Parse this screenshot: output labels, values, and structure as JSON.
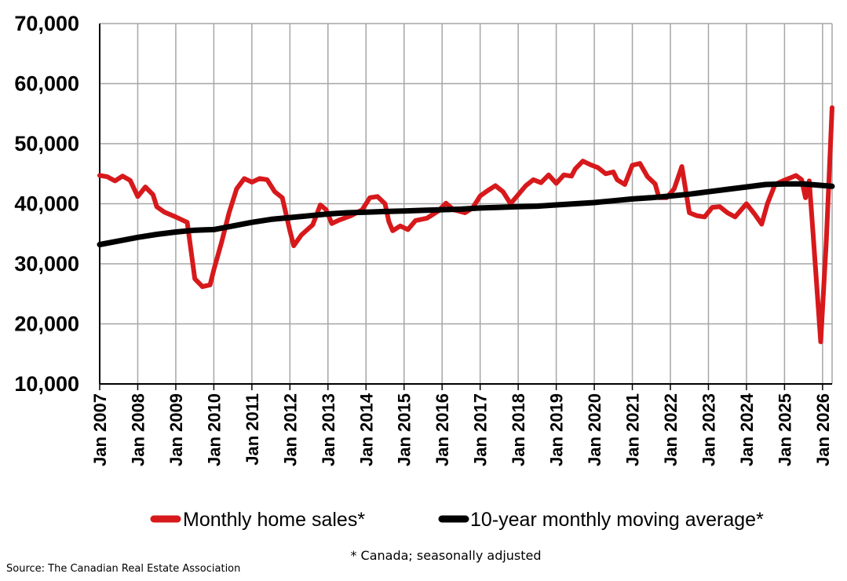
{
  "chart_data": {
    "type": "line",
    "title": "",
    "xlabel": "",
    "ylabel": "",
    "ylim": [
      10000,
      70000
    ],
    "yticks": [
      "10,000",
      "20,000",
      "30,000",
      "40,000",
      "50,000",
      "60,000",
      "70,000"
    ],
    "xticks": [
      "Jan 2007",
      "Jan 2008",
      "Jan 2009",
      "Jan 2010",
      "Jan 2011",
      "Jan 2012",
      "Jan 2013",
      "Jan 2014",
      "Jan 2015",
      "Jan 2016",
      "Jan 2017",
      "Jan 2018",
      "Jan 2019",
      "Jan 2020",
      "Jan 2021",
      "Jan 2022",
      "Jan 2023",
      "Jan 2024",
      "Jan 2025",
      "Jan 2026"
    ],
    "x_start_year": 2007,
    "x_end_year": 2026.25,
    "grid": true,
    "legend_position": "bottom",
    "series": [
      {
        "name": "Monthly home sales*",
        "color": "#d7191c",
        "points": [
          [
            2007.0,
            44700
          ],
          [
            2007.2,
            44500
          ],
          [
            2007.4,
            43800
          ],
          [
            2007.6,
            44600
          ],
          [
            2007.8,
            43900
          ],
          [
            2008.0,
            41200
          ],
          [
            2008.2,
            42800
          ],
          [
            2008.4,
            41500
          ],
          [
            2008.5,
            39500
          ],
          [
            2008.7,
            38600
          ],
          [
            2009.0,
            37800
          ],
          [
            2009.3,
            36900
          ],
          [
            2009.5,
            27500
          ],
          [
            2009.7,
            26200
          ],
          [
            2009.9,
            26500
          ],
          [
            2010.0,
            29000
          ],
          [
            2010.2,
            33500
          ],
          [
            2010.4,
            38500
          ],
          [
            2010.6,
            42500
          ],
          [
            2010.8,
            44200
          ],
          [
            2011.0,
            43600
          ],
          [
            2011.2,
            44200
          ],
          [
            2011.4,
            44000
          ],
          [
            2011.6,
            42000
          ],
          [
            2011.8,
            41000
          ],
          [
            2012.0,
            35500
          ],
          [
            2012.1,
            33000
          ],
          [
            2012.3,
            34800
          ],
          [
            2012.6,
            36500
          ],
          [
            2012.8,
            39800
          ],
          [
            2012.95,
            39000
          ],
          [
            2013.1,
            36700
          ],
          [
            2013.3,
            37300
          ],
          [
            2013.6,
            38000
          ],
          [
            2013.9,
            39000
          ],
          [
            2014.0,
            40000
          ],
          [
            2014.1,
            41000
          ],
          [
            2014.3,
            41200
          ],
          [
            2014.5,
            40000
          ],
          [
            2014.6,
            37000
          ],
          [
            2014.7,
            35500
          ],
          [
            2014.9,
            36300
          ],
          [
            2015.1,
            35700
          ],
          [
            2015.3,
            37200
          ],
          [
            2015.6,
            37600
          ],
          [
            2015.9,
            38800
          ],
          [
            2016.1,
            40100
          ],
          [
            2016.3,
            39000
          ],
          [
            2016.6,
            38500
          ],
          [
            2016.8,
            39300
          ],
          [
            2017.0,
            41300
          ],
          [
            2017.2,
            42200
          ],
          [
            2017.4,
            43000
          ],
          [
            2017.6,
            42000
          ],
          [
            2017.8,
            40000
          ],
          [
            2018.0,
            41500
          ],
          [
            2018.2,
            43000
          ],
          [
            2018.4,
            44000
          ],
          [
            2018.6,
            43500
          ],
          [
            2018.8,
            44800
          ],
          [
            2019.0,
            43400
          ],
          [
            2019.2,
            44800
          ],
          [
            2019.4,
            44600
          ],
          [
            2019.5,
            45800
          ],
          [
            2019.7,
            47100
          ],
          [
            2019.9,
            46500
          ],
          [
            2020.1,
            46000
          ],
          [
            2020.3,
            45000
          ],
          [
            2020.5,
            45300
          ],
          [
            2020.6,
            44000
          ],
          [
            2020.8,
            43200
          ],
          [
            2021.0,
            46400
          ],
          [
            2021.2,
            46700
          ],
          [
            2021.4,
            44500
          ],
          [
            2021.6,
            43300
          ],
          [
            2021.7,
            41000
          ],
          [
            2021.9,
            41000
          ],
          [
            2022.1,
            42500
          ],
          [
            2022.3,
            46200
          ],
          [
            2022.5,
            38500
          ],
          [
            2022.7,
            38000
          ],
          [
            2022.9,
            37800
          ],
          [
            2023.1,
            39400
          ],
          [
            2023.3,
            39500
          ],
          [
            2023.5,
            38500
          ],
          [
            2023.7,
            37800
          ],
          [
            2024.0,
            40000
          ],
          [
            2024.2,
            38400
          ],
          [
            2024.4,
            36600
          ],
          [
            2024.55,
            40000
          ],
          [
            2024.75,
            43200
          ],
          [
            2024.95,
            43800
          ],
          [
            2025.15,
            44300
          ],
          [
            2025.3,
            44700
          ],
          [
            2025.45,
            44000
          ],
          [
            2025.55,
            41000
          ],
          [
            2025.65,
            43800
          ],
          [
            2025.75,
            35000
          ],
          [
            2025.95,
            17000
          ],
          [
            2026.1,
            34000
          ],
          [
            2026.25,
            56000
          ]
        ]
      },
      {
        "name": "10-year monthly moving average*",
        "color": "#000000",
        "points": [
          [
            2007.0,
            33200
          ],
          [
            2007.5,
            33800
          ],
          [
            2008.0,
            34400
          ],
          [
            2008.5,
            34900
          ],
          [
            2009.0,
            35300
          ],
          [
            2009.5,
            35600
          ],
          [
            2010.0,
            35700
          ],
          [
            2010.5,
            36300
          ],
          [
            2011.0,
            36900
          ],
          [
            2011.5,
            37400
          ],
          [
            2012.0,
            37700
          ],
          [
            2012.5,
            38000
          ],
          [
            2013.0,
            38300
          ],
          [
            2013.5,
            38500
          ],
          [
            2014.0,
            38600
          ],
          [
            2014.5,
            38700
          ],
          [
            2015.0,
            38800
          ],
          [
            2015.5,
            38900
          ],
          [
            2016.0,
            39000
          ],
          [
            2016.5,
            39100
          ],
          [
            2017.0,
            39300
          ],
          [
            2017.5,
            39400
          ],
          [
            2018.0,
            39500
          ],
          [
            2018.5,
            39600
          ],
          [
            2019.0,
            39800
          ],
          [
            2019.5,
            40000
          ],
          [
            2020.0,
            40200
          ],
          [
            2020.5,
            40500
          ],
          [
            2021.0,
            40800
          ],
          [
            2021.5,
            41000
          ],
          [
            2022.0,
            41300
          ],
          [
            2022.5,
            41600
          ],
          [
            2023.0,
            42000
          ],
          [
            2023.5,
            42400
          ],
          [
            2024.0,
            42800
          ],
          [
            2024.5,
            43200
          ],
          [
            2025.0,
            43300
          ],
          [
            2025.5,
            43300
          ],
          [
            2026.25,
            42900
          ]
        ]
      }
    ]
  },
  "legend": {
    "sales_label": "Monthly home sales*",
    "average_label": "10-year monthly moving average*"
  },
  "footnote": "* Canada; seasonally adjusted",
  "source": "Source: The Canadian Real Estate Association"
}
